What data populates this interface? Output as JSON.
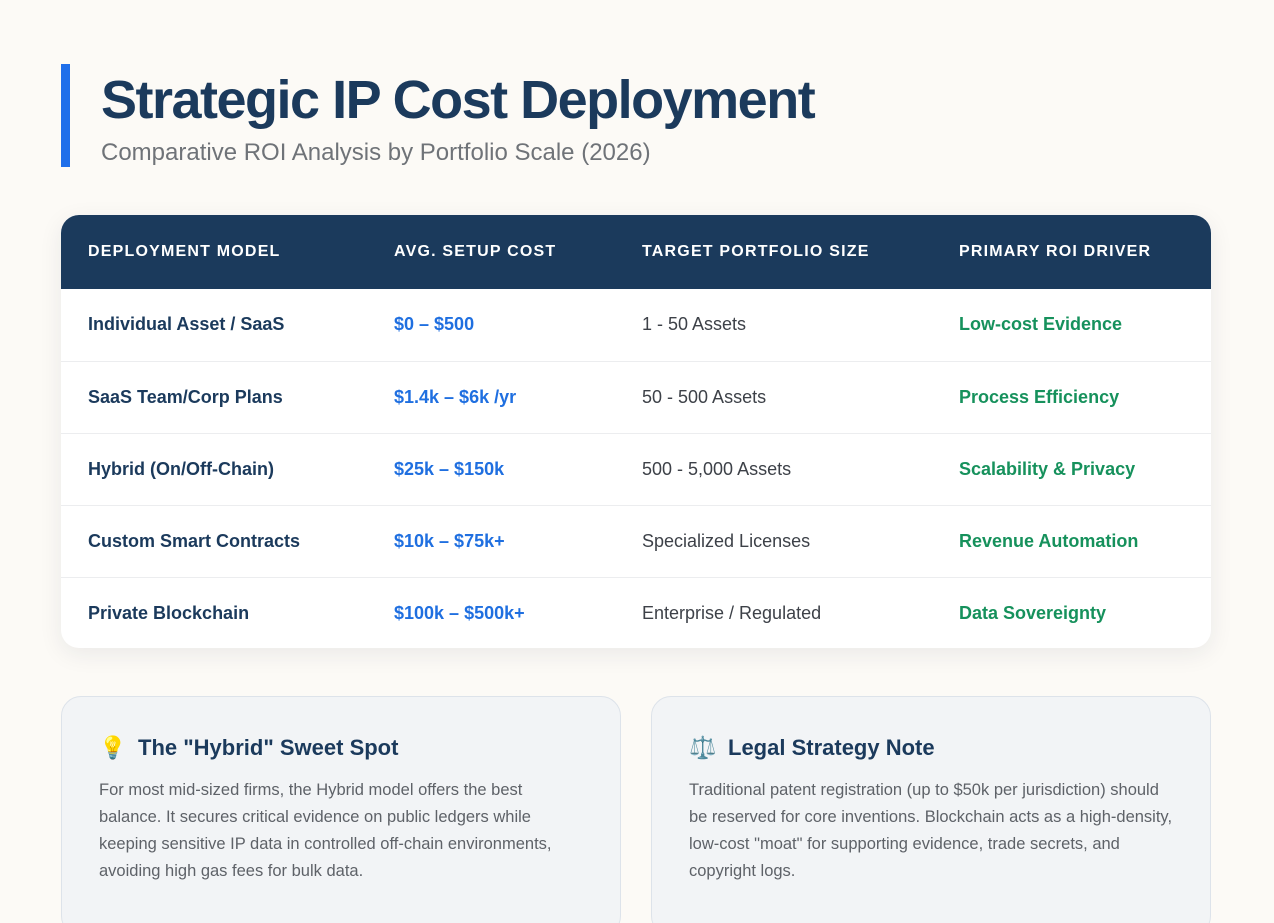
{
  "header": {
    "title": "Strategic IP Cost Deployment",
    "subtitle": "Comparative ROI Analysis by Portfolio Scale (2026)",
    "accent_color": "#1f6fea"
  },
  "table": {
    "columns": [
      "DEPLOYMENT MODEL",
      "AVG. SETUP COST",
      "TARGET PORTFOLIO SIZE",
      "PRIMARY ROI DRIVER"
    ],
    "rows": [
      {
        "model": "Individual Asset / SaaS",
        "cost": "$0 – $500",
        "size": "1 - 50 Assets",
        "driver": "Low-cost Evidence"
      },
      {
        "model": "SaaS Team/Corp Plans",
        "cost": "$1.4k – $6k /yr",
        "size": "50 - 500 Assets",
        "driver": "Process Efficiency"
      },
      {
        "model": "Hybrid (On/Off-Chain)",
        "cost": "$25k – $150k",
        "size": "500 - 5,000 Assets",
        "driver": "Scalability & Privacy"
      },
      {
        "model": "Custom Smart Contracts",
        "cost": "$10k – $75k+",
        "size": "Specialized Licenses",
        "driver": "Revenue Automation"
      },
      {
        "model": "Private Blockchain",
        "cost": "$100k – $500k+",
        "size": "Enterprise / Regulated",
        "driver": "Data Sovereignty"
      }
    ],
    "header_color": "#1b3a5c",
    "cost_color": "#1f6fe0",
    "driver_color": "#16915c"
  },
  "notes": [
    {
      "icon": "lightbulb-icon",
      "glyph": "💡",
      "title": "The \"Hybrid\" Sweet Spot",
      "body": "For most mid-sized firms, the Hybrid model offers the best balance. It secures critical evidence on public ledgers while keeping sensitive IP data in controlled off-chain environments, avoiding high gas fees for bulk data."
    },
    {
      "icon": "scales-icon",
      "glyph": "⚖️",
      "title": "Legal Strategy Note",
      "body": "Traditional patent registration (up to $50k per jurisdiction) should be reserved for core inventions. Blockchain acts as a high-density, low-cost \"moat\" for supporting evidence, trade secrets, and copyright logs."
    }
  ]
}
